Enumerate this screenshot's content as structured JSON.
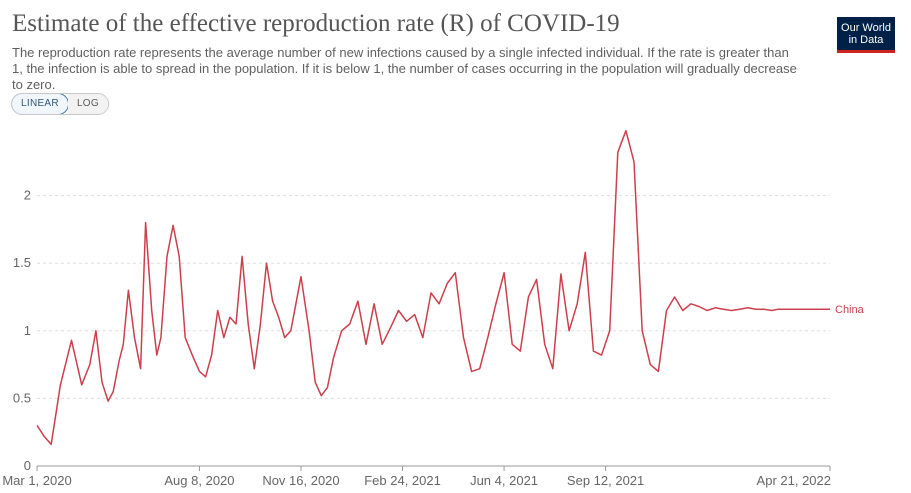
{
  "header": {
    "title": "Estimate of the effective reproduction rate (R) of COVID-19",
    "subtitle": "The reproduction rate represents the average number of new infections caused by a single infected individual. If the rate is greater than 1, the infection is able to spread in the population. If it is below 1, the number of cases occurring in the population will gradually decrease to zero."
  },
  "logo": {
    "line1": "Our World",
    "line2": "in Data"
  },
  "scale_toggle": {
    "linear_label": "LINEAR",
    "log_label": "LOG",
    "selected": "LINEAR"
  },
  "colors": {
    "series": "#cd3f4c",
    "grid": "#dddddd",
    "axis": "#999999",
    "logo_bg": "#002147",
    "logo_accent": "#ce261e"
  },
  "chart_data": {
    "type": "line",
    "title": "Estimate of the effective reproduction rate (R) of COVID-19",
    "xlabel": "",
    "ylabel": "",
    "x_range": [
      "2020-03-01",
      "2022-04-21"
    ],
    "ylim": [
      0,
      2.5
    ],
    "y_ticks": [
      0,
      0.5,
      1,
      1.5,
      2
    ],
    "y_tick_labels": [
      "0",
      "0.5",
      "1",
      "1.5",
      "2"
    ],
    "x_ticks": [
      "2020-03-01",
      "2020-08-08",
      "2020-11-16",
      "2021-02-24",
      "2021-06-04",
      "2021-09-12",
      "2022-04-21"
    ],
    "x_tick_labels": [
      "Mar 1, 2020",
      "Aug 8, 2020",
      "Nov 16, 2020",
      "Feb 24, 2021",
      "Jun 4, 2021",
      "Sep 12, 2021",
      "Apr 21, 2022"
    ],
    "grid": "horizontal dashed",
    "legend": "inline label at line end (right)",
    "series": [
      {
        "name": "China",
        "x": [
          "2020-03-01",
          "2020-03-08",
          "2020-03-15",
          "2020-03-24",
          "2020-04-04",
          "2020-04-14",
          "2020-04-22",
          "2020-04-28",
          "2020-05-04",
          "2020-05-10",
          "2020-05-15",
          "2020-05-21",
          "2020-05-25",
          "2020-05-30",
          "2020-06-05",
          "2020-06-11",
          "2020-06-16",
          "2020-06-22",
          "2020-06-27",
          "2020-07-01",
          "2020-07-07",
          "2020-07-13",
          "2020-07-19",
          "2020-07-25",
          "2020-08-02",
          "2020-08-08",
          "2020-08-14",
          "2020-08-20",
          "2020-08-26",
          "2020-09-01",
          "2020-09-07",
          "2020-09-13",
          "2020-09-19",
          "2020-09-25",
          "2020-10-01",
          "2020-10-07",
          "2020-10-13",
          "2020-10-19",
          "2020-10-25",
          "2020-10-31",
          "2020-11-06",
          "2020-11-16",
          "2020-11-24",
          "2020-11-30",
          "2020-12-06",
          "2020-12-12",
          "2020-12-18",
          "2020-12-26",
          "2021-01-03",
          "2021-01-11",
          "2021-01-19",
          "2021-01-27",
          "2021-02-04",
          "2021-02-12",
          "2021-02-20",
          "2021-02-28",
          "2021-03-08",
          "2021-03-16",
          "2021-03-24",
          "2021-04-01",
          "2021-04-09",
          "2021-04-17",
          "2021-04-25",
          "2021-05-03",
          "2021-05-11",
          "2021-05-19",
          "2021-05-27",
          "2021-06-04",
          "2021-06-12",
          "2021-06-20",
          "2021-06-28",
          "2021-07-06",
          "2021-07-14",
          "2021-07-22",
          "2021-07-30",
          "2021-08-07",
          "2021-08-15",
          "2021-08-23",
          "2021-08-31",
          "2021-09-08",
          "2021-09-16",
          "2021-09-24",
          "2021-10-02",
          "2021-10-10",
          "2021-10-18",
          "2021-10-26",
          "2021-11-03",
          "2021-11-11",
          "2021-11-19",
          "2021-11-27",
          "2021-12-05",
          "2021-12-13",
          "2021-12-21",
          "2021-12-29",
          "2022-01-06",
          "2022-01-14",
          "2022-01-22",
          "2022-01-30",
          "2022-02-07",
          "2022-02-15",
          "2022-02-23",
          "2022-03-01",
          "2022-03-09",
          "2022-03-17",
          "2022-03-25",
          "2022-04-02",
          "2022-04-10",
          "2022-04-16",
          "2022-04-21"
        ],
        "values": [
          0.3,
          0.22,
          0.16,
          0.6,
          0.93,
          0.6,
          0.75,
          1.0,
          0.62,
          0.48,
          0.55,
          0.78,
          0.9,
          1.3,
          0.95,
          0.72,
          1.8,
          1.15,
          0.82,
          0.95,
          1.55,
          1.78,
          1.55,
          0.95,
          0.8,
          0.7,
          0.66,
          0.82,
          1.15,
          0.95,
          1.1,
          1.05,
          1.55,
          1.05,
          0.72,
          1.05,
          1.5,
          1.22,
          1.1,
          0.95,
          1.0,
          1.4,
          1.0,
          0.62,
          0.52,
          0.58,
          0.8,
          1.0,
          1.05,
          1.22,
          0.9,
          1.2,
          0.9,
          1.02,
          1.15,
          1.07,
          1.12,
          0.95,
          1.28,
          1.2,
          1.35,
          1.43,
          0.95,
          0.7,
          0.72,
          0.95,
          1.2,
          1.43,
          0.9,
          0.85,
          1.25,
          1.38,
          0.9,
          0.72,
          1.42,
          1.0,
          1.2,
          1.58,
          0.85,
          0.82,
          1.0,
          2.32,
          2.48,
          2.25,
          1.0,
          0.75,
          0.7,
          1.15,
          1.25,
          1.15,
          1.2,
          1.18,
          1.15,
          1.17,
          1.16,
          1.15,
          1.16,
          1.17,
          1.16,
          1.16,
          1.15,
          1.16,
          1.16,
          1.16,
          1.16,
          1.16,
          1.16,
          1.16,
          1.16
        ]
      }
    ]
  }
}
